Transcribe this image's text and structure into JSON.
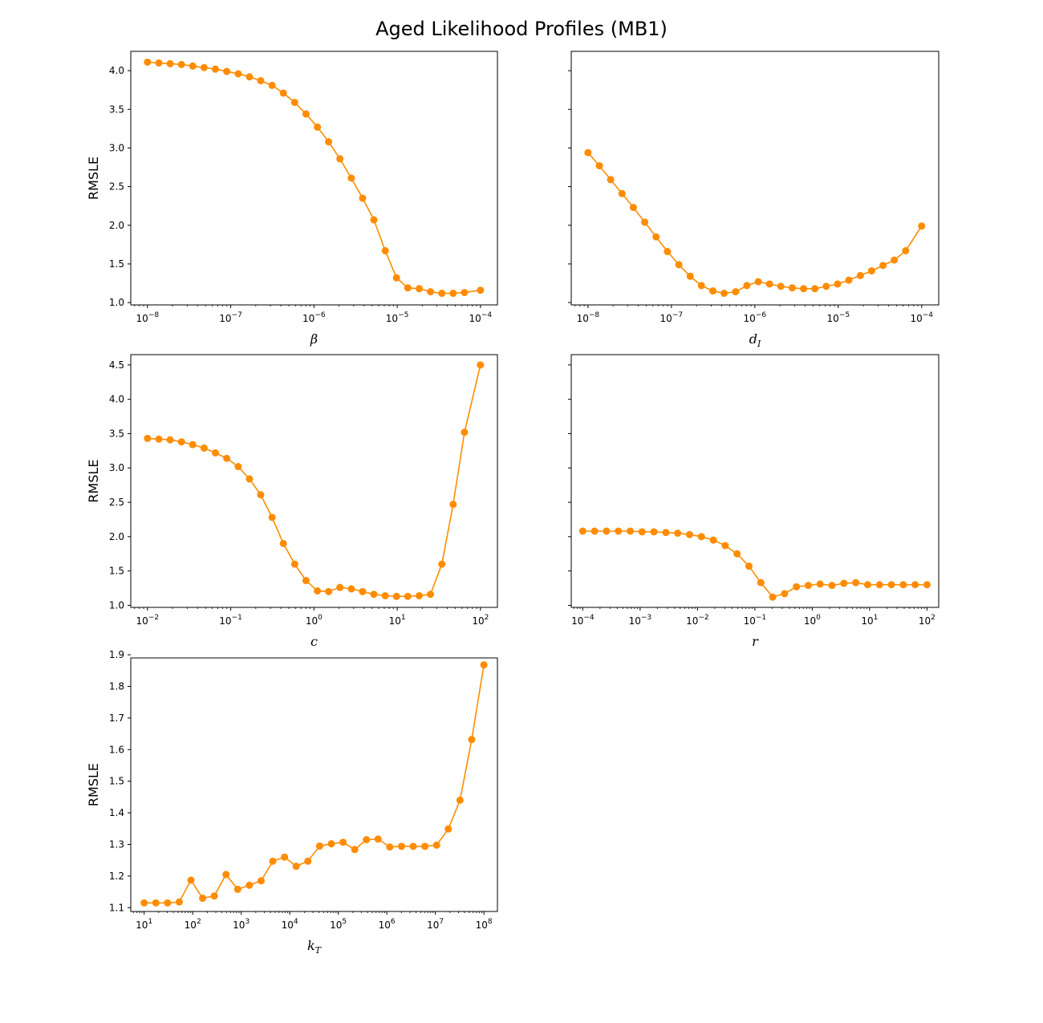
{
  "figure": {
    "title": "Aged Likelihood Profiles (MB1)"
  },
  "style": {
    "series_color": "#ff8c00"
  },
  "chart_data": [
    {
      "type": "line",
      "xscale": "log",
      "xlabel": "β",
      "ylabel": "RMSLE",
      "xlim": [
        6.3e-09,
        0.00016
      ],
      "ylim": [
        0.97,
        4.25
      ],
      "x_ticks": [
        1e-08,
        1e-07,
        1e-06,
        1e-05,
        0.0001
      ],
      "x_tick_labels": [
        [
          "10",
          "−8"
        ],
        [
          "10",
          "−7"
        ],
        [
          "10",
          "−6"
        ],
        [
          "10",
          "−5"
        ],
        [
          "10",
          "−4"
        ]
      ],
      "y_ticks": [
        1.0,
        1.5,
        2.0,
        2.5,
        3.0,
        3.5,
        4.0
      ],
      "y_tick_labels": [
        "1.0",
        "1.5",
        "2.0",
        "2.5",
        "3.0",
        "3.5",
        "4.0"
      ],
      "x": [
        1e-08,
        1.37e-08,
        1.87e-08,
        2.56e-08,
        3.5e-08,
        4.79e-08,
        6.55e-08,
        8.96e-08,
        1.23e-07,
        1.68e-07,
        2.29e-07,
        3.14e-07,
        4.29e-07,
        5.87e-07,
        8.03e-07,
        1.1e-06,
        1.5e-06,
        2.05e-06,
        2.81e-06,
        3.84e-06,
        5.25e-06,
        7.18e-06,
        9.82e-06,
        1.34e-05,
        1.84e-05,
        2.51e-05,
        3.44e-05,
        4.7e-05,
        6.43e-05,
        0.0001
      ],
      "y": [
        4.11,
        4.1,
        4.09,
        4.08,
        4.06,
        4.04,
        4.02,
        3.99,
        3.96,
        3.92,
        3.87,
        3.81,
        3.71,
        3.59,
        3.44,
        3.27,
        3.08,
        2.86,
        2.61,
        2.35,
        2.07,
        1.67,
        1.32,
        1.19,
        1.18,
        1.14,
        1.12,
        1.12,
        1.13,
        1.16
      ]
    },
    {
      "type": "line",
      "xscale": "log",
      "xlabel": "d",
      "xlabel_sub": "I",
      "ylabel": "",
      "xlim": [
        6.3e-09,
        0.00016
      ],
      "ylim": [
        0.97,
        4.25
      ],
      "x_ticks": [
        1e-08,
        1e-07,
        1e-06,
        1e-05,
        0.0001
      ],
      "x_tick_labels": [
        [
          "10",
          "−8"
        ],
        [
          "10",
          "−7"
        ],
        [
          "10",
          "−6"
        ],
        [
          "10",
          "−5"
        ],
        [
          "10",
          "−4"
        ]
      ],
      "y_ticks": [
        1.0,
        1.5,
        2.0,
        2.5,
        3.0,
        3.5,
        4.0
      ],
      "y_tick_labels": [
        "",
        "",
        "",
        "",
        "",
        "",
        ""
      ],
      "x": [
        1e-08,
        1.37e-08,
        1.87e-08,
        2.56e-08,
        3.5e-08,
        4.79e-08,
        6.55e-08,
        8.96e-08,
        1.23e-07,
        1.68e-07,
        2.29e-07,
        3.14e-07,
        4.29e-07,
        5.87e-07,
        8.03e-07,
        1.1e-06,
        1.5e-06,
        2.05e-06,
        2.81e-06,
        3.84e-06,
        5.25e-06,
        7.18e-06,
        9.82e-06,
        1.34e-05,
        1.84e-05,
        2.51e-05,
        3.44e-05,
        4.7e-05,
        6.43e-05,
        0.0001
      ],
      "y": [
        2.94,
        2.77,
        2.59,
        2.41,
        2.23,
        2.04,
        1.85,
        1.66,
        1.49,
        1.34,
        1.22,
        1.15,
        1.12,
        1.14,
        1.22,
        1.27,
        1.24,
        1.21,
        1.19,
        1.18,
        1.18,
        1.21,
        1.24,
        1.29,
        1.35,
        1.41,
        1.48,
        1.55,
        1.67,
        1.99
      ]
    },
    {
      "type": "line",
      "xscale": "log",
      "xlabel": "c",
      "ylabel": "RMSLE",
      "xlim": [
        0.0063,
        160
      ],
      "ylim": [
        0.97,
        4.65
      ],
      "x_ticks": [
        0.01,
        0.1,
        1,
        10,
        100
      ],
      "x_tick_labels": [
        [
          "10",
          "−2"
        ],
        [
          "10",
          "−1"
        ],
        [
          "10",
          "0"
        ],
        [
          "10",
          "1"
        ],
        [
          "10",
          "2"
        ]
      ],
      "y_ticks": [
        1.0,
        1.5,
        2.0,
        2.5,
        3.0,
        3.5,
        4.0,
        4.5
      ],
      "y_tick_labels": [
        "1.0",
        "1.5",
        "2.0",
        "2.5",
        "3.0",
        "3.5",
        "4.0",
        "4.5"
      ],
      "x": [
        0.01,
        0.0137,
        0.0187,
        0.0256,
        0.035,
        0.0479,
        0.0655,
        0.0896,
        0.123,
        0.168,
        0.229,
        0.314,
        0.429,
        0.587,
        0.803,
        1.1,
        1.5,
        2.05,
        2.81,
        3.84,
        5.25,
        7.18,
        9.82,
        13.4,
        18.4,
        25.1,
        34.4,
        47.0,
        64.3,
        100
      ],
      "y": [
        3.43,
        3.42,
        3.41,
        3.38,
        3.34,
        3.29,
        3.22,
        3.14,
        3.02,
        2.84,
        2.61,
        2.28,
        1.9,
        1.6,
        1.36,
        1.21,
        1.2,
        1.26,
        1.24,
        1.2,
        1.16,
        1.14,
        1.13,
        1.13,
        1.14,
        1.16,
        1.6,
        2.47,
        3.52,
        4.5
      ]
    },
    {
      "type": "line",
      "xscale": "log",
      "xlabel": "r",
      "ylabel": "",
      "xlim": [
        6.3e-05,
        160
      ],
      "ylim": [
        0.97,
        4.65
      ],
      "x_ticks": [
        0.0001,
        0.001,
        0.01,
        0.1,
        1,
        10,
        100
      ],
      "x_tick_labels": [
        [
          "10",
          "−4"
        ],
        [
          "10",
          "−3"
        ],
        [
          "10",
          "−2"
        ],
        [
          "10",
          "−1"
        ],
        [
          "10",
          "0"
        ],
        [
          "10",
          "1"
        ],
        [
          "10",
          "2"
        ]
      ],
      "y_ticks": [
        1.0,
        1.5,
        2.0,
        2.5,
        3.0,
        3.5,
        4.0,
        4.5
      ],
      "y_tick_labels": [
        "",
        "",
        "",
        "",
        "",
        "",
        "",
        ""
      ],
      "x": [
        0.0001,
        0.000161,
        0.000259,
        0.000418,
        0.000672,
        0.00108,
        0.00174,
        0.00281,
        0.00452,
        0.00728,
        0.0117,
        0.0189,
        0.0304,
        0.0489,
        0.0788,
        0.127,
        0.204,
        0.329,
        0.53,
        0.853,
        1.37,
        2.21,
        3.56,
        5.74,
        9.24,
        14.9,
        24.0,
        38.6,
        62.1,
        100
      ],
      "y": [
        2.08,
        2.08,
        2.08,
        2.08,
        2.08,
        2.07,
        2.07,
        2.06,
        2.05,
        2.03,
        2.0,
        1.95,
        1.87,
        1.75,
        1.57,
        1.33,
        1.12,
        1.17,
        1.27,
        1.29,
        1.31,
        1.29,
        1.32,
        1.33,
        1.3,
        1.3,
        1.3,
        1.3,
        1.3,
        1.3
      ]
    },
    {
      "type": "line",
      "xscale": "log",
      "xlabel": "k",
      "xlabel_sub": "T",
      "ylabel": "RMSLE",
      "xlim": [
        5.3,
        190000000
      ],
      "ylim": [
        1.088,
        1.89
      ],
      "x_ticks": [
        10,
        100,
        1000,
        10000,
        100000,
        1000000,
        10000000,
        100000000
      ],
      "x_tick_labels": [
        [
          "10",
          "1"
        ],
        [
          "10",
          "2"
        ],
        [
          "10",
          "3"
        ],
        [
          "10",
          "4"
        ],
        [
          "10",
          "5"
        ],
        [
          "10",
          "6"
        ],
        [
          "10",
          "7"
        ],
        [
          "10",
          "8"
        ]
      ],
      "y_ticks": [
        1.1,
        1.2,
        1.3,
        1.4,
        1.5,
        1.6,
        1.7,
        1.8,
        1.9
      ],
      "y_tick_labels": [
        "1.1",
        "1.2",
        "1.3",
        "1.4",
        "1.5",
        "1.6",
        "1.7",
        "1.8",
        "1.9"
      ],
      "x": [
        10,
        17.4,
        30.3,
        52.8,
        92.0,
        160,
        279,
        486,
        847,
        1474,
        2569,
        4475,
        7796,
        13580,
        23660,
        41210,
        71790,
        125100,
        217900,
        379500,
        661200,
        1152000,
        2006000,
        3495000,
        6089000,
        10610000,
        18480000,
        32190000,
        56080000,
        100000000
      ],
      "y": [
        1.115,
        1.115,
        1.115,
        1.118,
        1.187,
        1.13,
        1.137,
        1.205,
        1.158,
        1.171,
        1.185,
        1.247,
        1.26,
        1.231,
        1.247,
        1.295,
        1.302,
        1.307,
        1.284,
        1.315,
        1.317,
        1.292,
        1.294,
        1.294,
        1.294,
        1.298,
        1.349,
        1.44,
        1.632,
        1.868
      ]
    }
  ]
}
